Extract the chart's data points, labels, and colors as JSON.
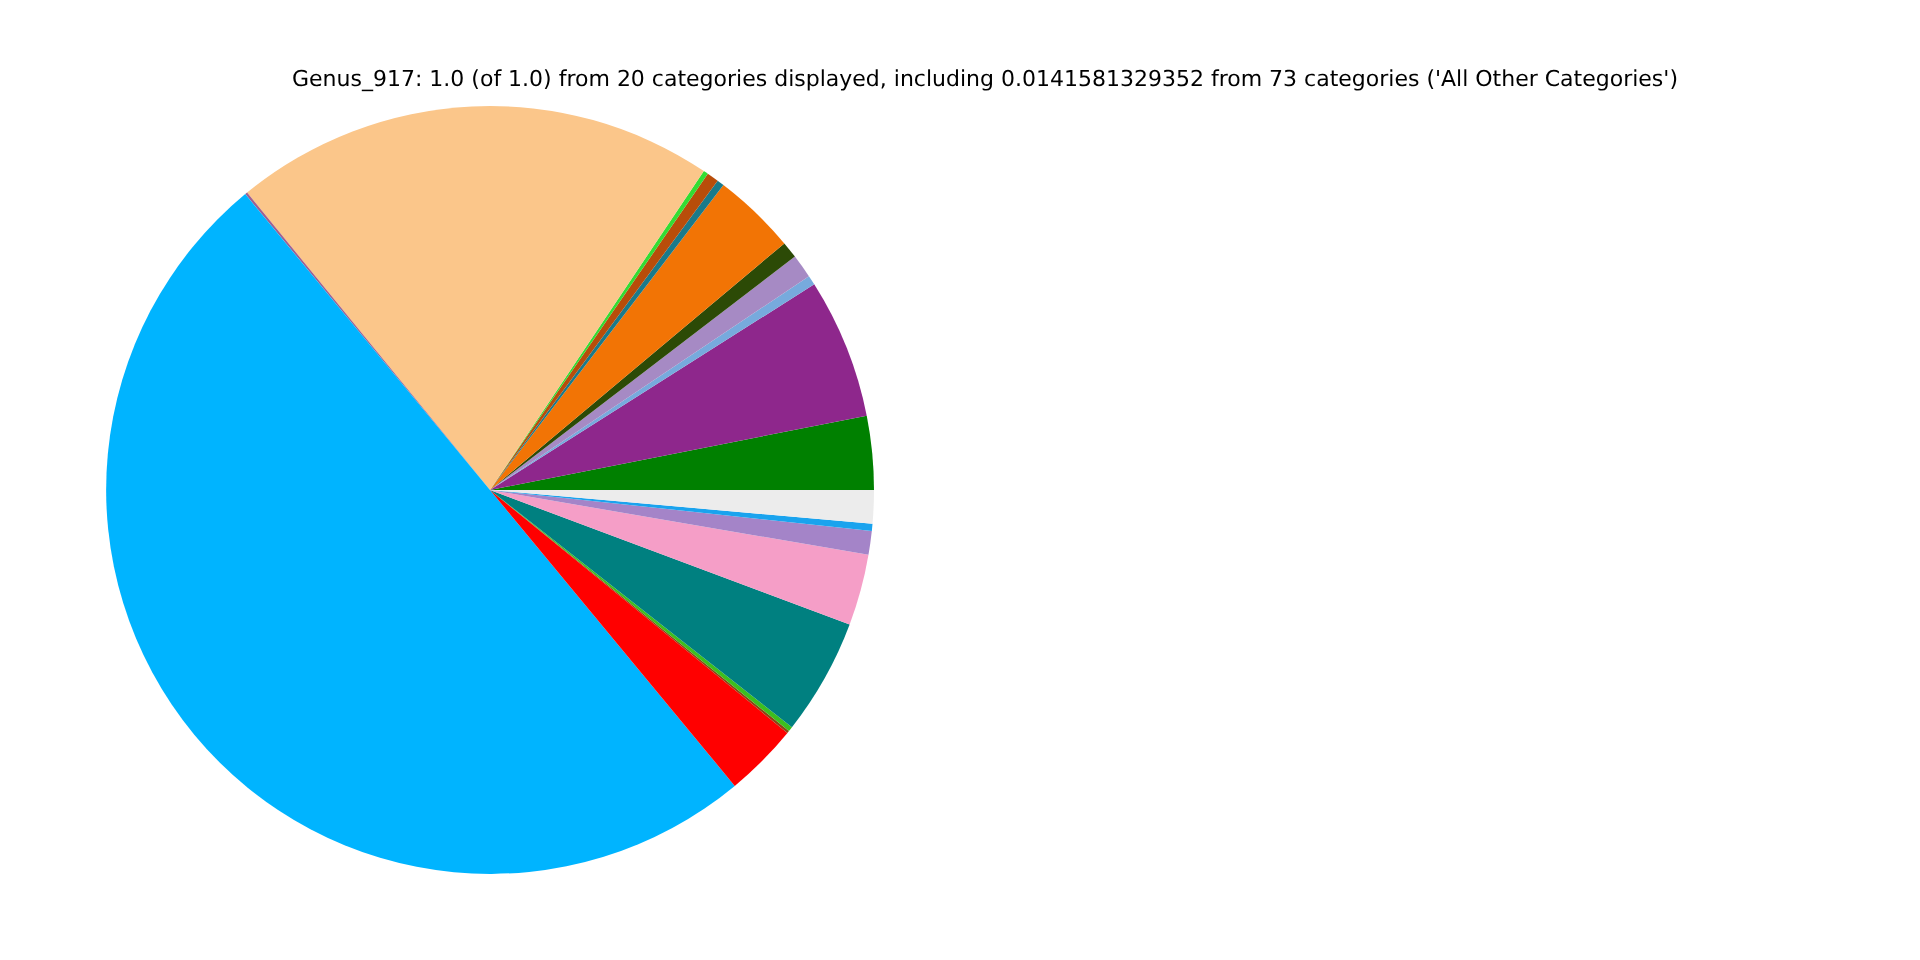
{
  "chart_data": {
    "type": "pie",
    "title": "Genus_917: 1.0 (of 1.0) from 20 categories displayed, including 0.0141581329352 from 73 categories ('All Other Categories')",
    "categories": [
      null,
      null,
      null,
      null,
      null,
      null,
      null,
      null,
      null,
      null,
      null,
      null,
      null,
      null,
      null,
      null,
      null,
      null,
      null,
      null
    ],
    "values": [
      3.1,
      5.9,
      0.4,
      1.0,
      0.7,
      3.5,
      0.3,
      0.5,
      0.2,
      20.3,
      0.1,
      50.0,
      3.1,
      0.1,
      0.2,
      4.9,
      3.0,
      1.0,
      0.3,
      1.4
    ],
    "colors": [
      "#008000",
      "#8e278c",
      "#77aadd",
      "#a68ac4",
      "#2c4a06",
      "#f27405",
      "#1a7a8a",
      "#b84d0a",
      "#33dd33",
      "#fbc68a",
      "#a06090",
      "#00b4ff",
      "#ff0000",
      "#8b4513",
      "#3cbf1e",
      "#008080",
      "#f59ec7",
      "#a484c8",
      "#1aa3ee",
      "#ececec"
    ],
    "legend": false
  }
}
